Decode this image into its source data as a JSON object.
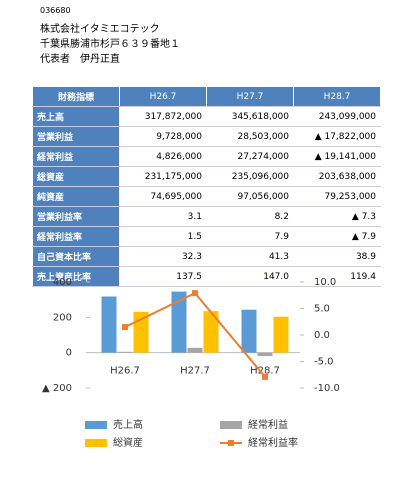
{
  "company": {
    "code": "036680",
    "name": "株式会社イタミエコテック",
    "address": "千葉県勝浦市杉戸６３９番地１",
    "representative": "代表者　伊丹正直"
  },
  "table": {
    "header": [
      "財務指標",
      "H26.7",
      "H27.7",
      "H28.7"
    ],
    "rows": [
      [
        "売上高",
        "317,872,000",
        "345,618,000",
        "243,099,000"
      ],
      [
        "営業利益",
        "9,728,000",
        "28,503,000",
        "▲ 17,822,000"
      ],
      [
        "経常利益",
        "4,826,000",
        "27,274,000",
        "▲ 19,141,000"
      ],
      [
        "総資産",
        "231,175,000",
        "235,096,000",
        "203,638,000"
      ],
      [
        "純資産",
        "74,695,000",
        "97,056,000",
        "79,253,000"
      ],
      [
        "営業利益率",
        "3.1",
        "8.2",
        "▲ 7.3"
      ],
      [
        "経常利益率",
        "1.5",
        "7.9",
        "▲ 7.9"
      ],
      [
        "自己資本比率",
        "32.3",
        "41.3",
        "38.9"
      ],
      [
        "売上資産比率",
        "137.5",
        "147.0",
        "119.4"
      ]
    ]
  },
  "chart_data": {
    "type": "combo",
    "categories": [
      "H26.7",
      "H27.7",
      "H28.7"
    ],
    "series": [
      {
        "name": "売上高",
        "type": "bar",
        "color": "#5b9bd5",
        "values": [
          317.872,
          345.618,
          243.099
        ]
      },
      {
        "name": "経常利益",
        "type": "bar",
        "color": "#a5a5a5",
        "values": [
          4.826,
          27.274,
          -19.141
        ]
      },
      {
        "name": "総資産",
        "type": "bar",
        "color": "#ffc000",
        "values": [
          231.175,
          235.096,
          203.638
        ]
      },
      {
        "name": "経常利益率",
        "type": "line",
        "axis": "y2",
        "color": "#ed7d31",
        "values": [
          1.5,
          7.9,
          -7.9
        ]
      }
    ],
    "ylim": [
      -200,
      400
    ],
    "yticks": [
      400,
      200,
      0,
      {
        "value": -200,
        "label": "▲ 200"
      }
    ],
    "y2lim": [
      -10,
      10
    ],
    "y2ticks": [
      {
        "value": 10,
        "label": "10.0"
      },
      {
        "value": 5,
        "label": "5.0"
      },
      {
        "value": 0,
        "label": "0.0"
      },
      {
        "value": -5,
        "label": "-5.0"
      },
      {
        "value": -10,
        "label": "-10.0"
      }
    ],
    "grid": false
  }
}
